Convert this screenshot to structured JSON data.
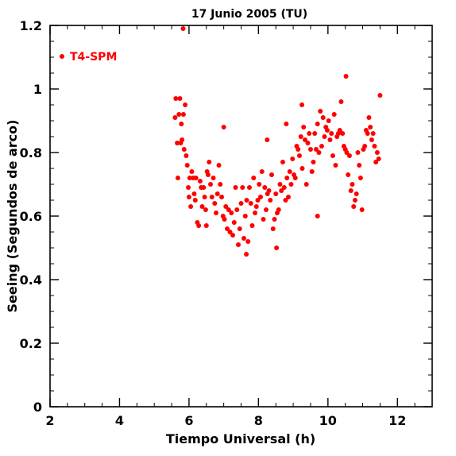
{
  "chart_data": {
    "type": "scatter",
    "title": "17 Junio 2005 (TU)",
    "xlabel": "Tiempo Universal (h)",
    "ylabel": "Seeing (Segundos de arco)",
    "xlim": [
      2,
      13
    ],
    "ylim": [
      0,
      1.2
    ],
    "x_ticks": [
      2,
      4,
      6,
      8,
      10,
      12
    ],
    "x_tick_labels": [
      "2",
      "4",
      "6",
      "8",
      "10",
      "12"
    ],
    "y_ticks": [
      0,
      0.2,
      0.4,
      0.6,
      0.8,
      1.0,
      1.2
    ],
    "y_tick_labels": [
      "0",
      "0.2",
      "0.4",
      "0.6",
      "0.8",
      "1",
      "1.2"
    ],
    "grid": false,
    "legend_position": "top-left",
    "colors": {
      "series": "#ff0000",
      "axes": "#000000"
    },
    "series": [
      {
        "name": "T4-SPM",
        "x": [
          5.6,
          5.62,
          5.66,
          5.68,
          5.71,
          5.74,
          5.76,
          5.78,
          5.8,
          5.84,
          5.86,
          5.89,
          5.92,
          5.95,
          5.98,
          6.0,
          6.02,
          6.05,
          6.08,
          6.12,
          6.15,
          6.18,
          6.2,
          6.24,
          6.28,
          6.32,
          6.35,
          6.38,
          6.42,
          6.45,
          6.48,
          6.52,
          6.55,
          6.58,
          6.62,
          6.66,
          6.7,
          6.74,
          6.78,
          6.82,
          6.86,
          6.9,
          6.94,
          6.98,
          7.02,
          7.06,
          7.1,
          7.14,
          7.18,
          7.22,
          7.26,
          7.3,
          7.34,
          7.38,
          7.42,
          7.46,
          7.5,
          7.54,
          7.58,
          7.62,
          7.66,
          7.7,
          7.74,
          7.78,
          7.82,
          7.86,
          7.9,
          7.94,
          7.98,
          8.02,
          8.06,
          8.1,
          8.14,
          8.18,
          8.22,
          8.26,
          8.3,
          8.34,
          8.38,
          8.42,
          8.46,
          8.5,
          8.54,
          8.58,
          8.62,
          8.66,
          8.7,
          8.74,
          8.78,
          8.82,
          8.86,
          8.9,
          8.94,
          8.98,
          9.02,
          9.06,
          9.1,
          9.14,
          9.18,
          9.22,
          9.26,
          9.3,
          9.34,
          9.38,
          9.42,
          9.46,
          9.5,
          9.54,
          9.58,
          9.62,
          9.66,
          9.7,
          9.74,
          9.78,
          9.82,
          9.86,
          9.9,
          9.94,
          9.98,
          10.02,
          10.06,
          10.1,
          10.14,
          10.18,
          10.22,
          10.26,
          10.3,
          10.34,
          10.38,
          10.42,
          10.46,
          10.5,
          10.54,
          10.58,
          10.62,
          10.66,
          10.7,
          10.74,
          10.78,
          10.82,
          10.86,
          10.9,
          10.94,
          10.98,
          11.02,
          11.06,
          11.1,
          11.14,
          11.18,
          11.22,
          11.26,
          11.3,
          11.34,
          11.38,
          11.42,
          11.46,
          11.5,
          5.83,
          7.0,
          8.25,
          8.8,
          9.25,
          10.52,
          6.5,
          7.65,
          8.52,
          9.7
        ],
        "y": [
          0.91,
          0.97,
          0.83,
          0.72,
          0.92,
          0.97,
          0.83,
          0.89,
          0.84,
          0.92,
          0.81,
          0.95,
          0.79,
          0.76,
          0.69,
          0.66,
          0.72,
          0.63,
          0.74,
          0.72,
          0.67,
          0.65,
          0.72,
          0.58,
          0.57,
          0.71,
          0.69,
          0.63,
          0.69,
          0.66,
          0.62,
          0.74,
          0.73,
          0.77,
          0.7,
          0.66,
          0.72,
          0.64,
          0.61,
          0.67,
          0.76,
          0.7,
          0.66,
          0.6,
          0.59,
          0.63,
          0.56,
          0.62,
          0.55,
          0.61,
          0.54,
          0.58,
          0.69,
          0.62,
          0.51,
          0.56,
          0.64,
          0.69,
          0.53,
          0.6,
          0.65,
          0.52,
          0.69,
          0.64,
          0.57,
          0.72,
          0.61,
          0.63,
          0.65,
          0.7,
          0.66,
          0.74,
          0.59,
          0.69,
          0.62,
          0.67,
          0.68,
          0.65,
          0.73,
          0.56,
          0.59,
          0.67,
          0.61,
          0.62,
          0.7,
          0.68,
          0.77,
          0.69,
          0.65,
          0.72,
          0.66,
          0.74,
          0.7,
          0.78,
          0.73,
          0.72,
          0.82,
          0.81,
          0.79,
          0.85,
          0.75,
          0.88,
          0.84,
          0.7,
          0.83,
          0.86,
          0.81,
          0.74,
          0.77,
          0.86,
          0.81,
          0.89,
          0.8,
          0.93,
          0.82,
          0.91,
          0.85,
          0.88,
          0.87,
          0.9,
          0.84,
          0.86,
          0.79,
          0.92,
          0.76,
          0.85,
          0.86,
          0.87,
          0.96,
          0.86,
          0.82,
          0.81,
          0.8,
          0.73,
          0.79,
          0.68,
          0.7,
          0.63,
          0.65,
          0.67,
          0.8,
          0.76,
          0.72,
          0.62,
          0.81,
          0.82,
          0.87,
          0.86,
          0.91,
          0.88,
          0.84,
          0.86,
          0.82,
          0.77,
          0.8,
          0.78,
          0.98,
          1.19,
          0.88,
          0.84,
          0.89,
          0.95,
          1.04,
          0.57,
          0.48,
          0.5,
          0.6
        ]
      }
    ]
  }
}
